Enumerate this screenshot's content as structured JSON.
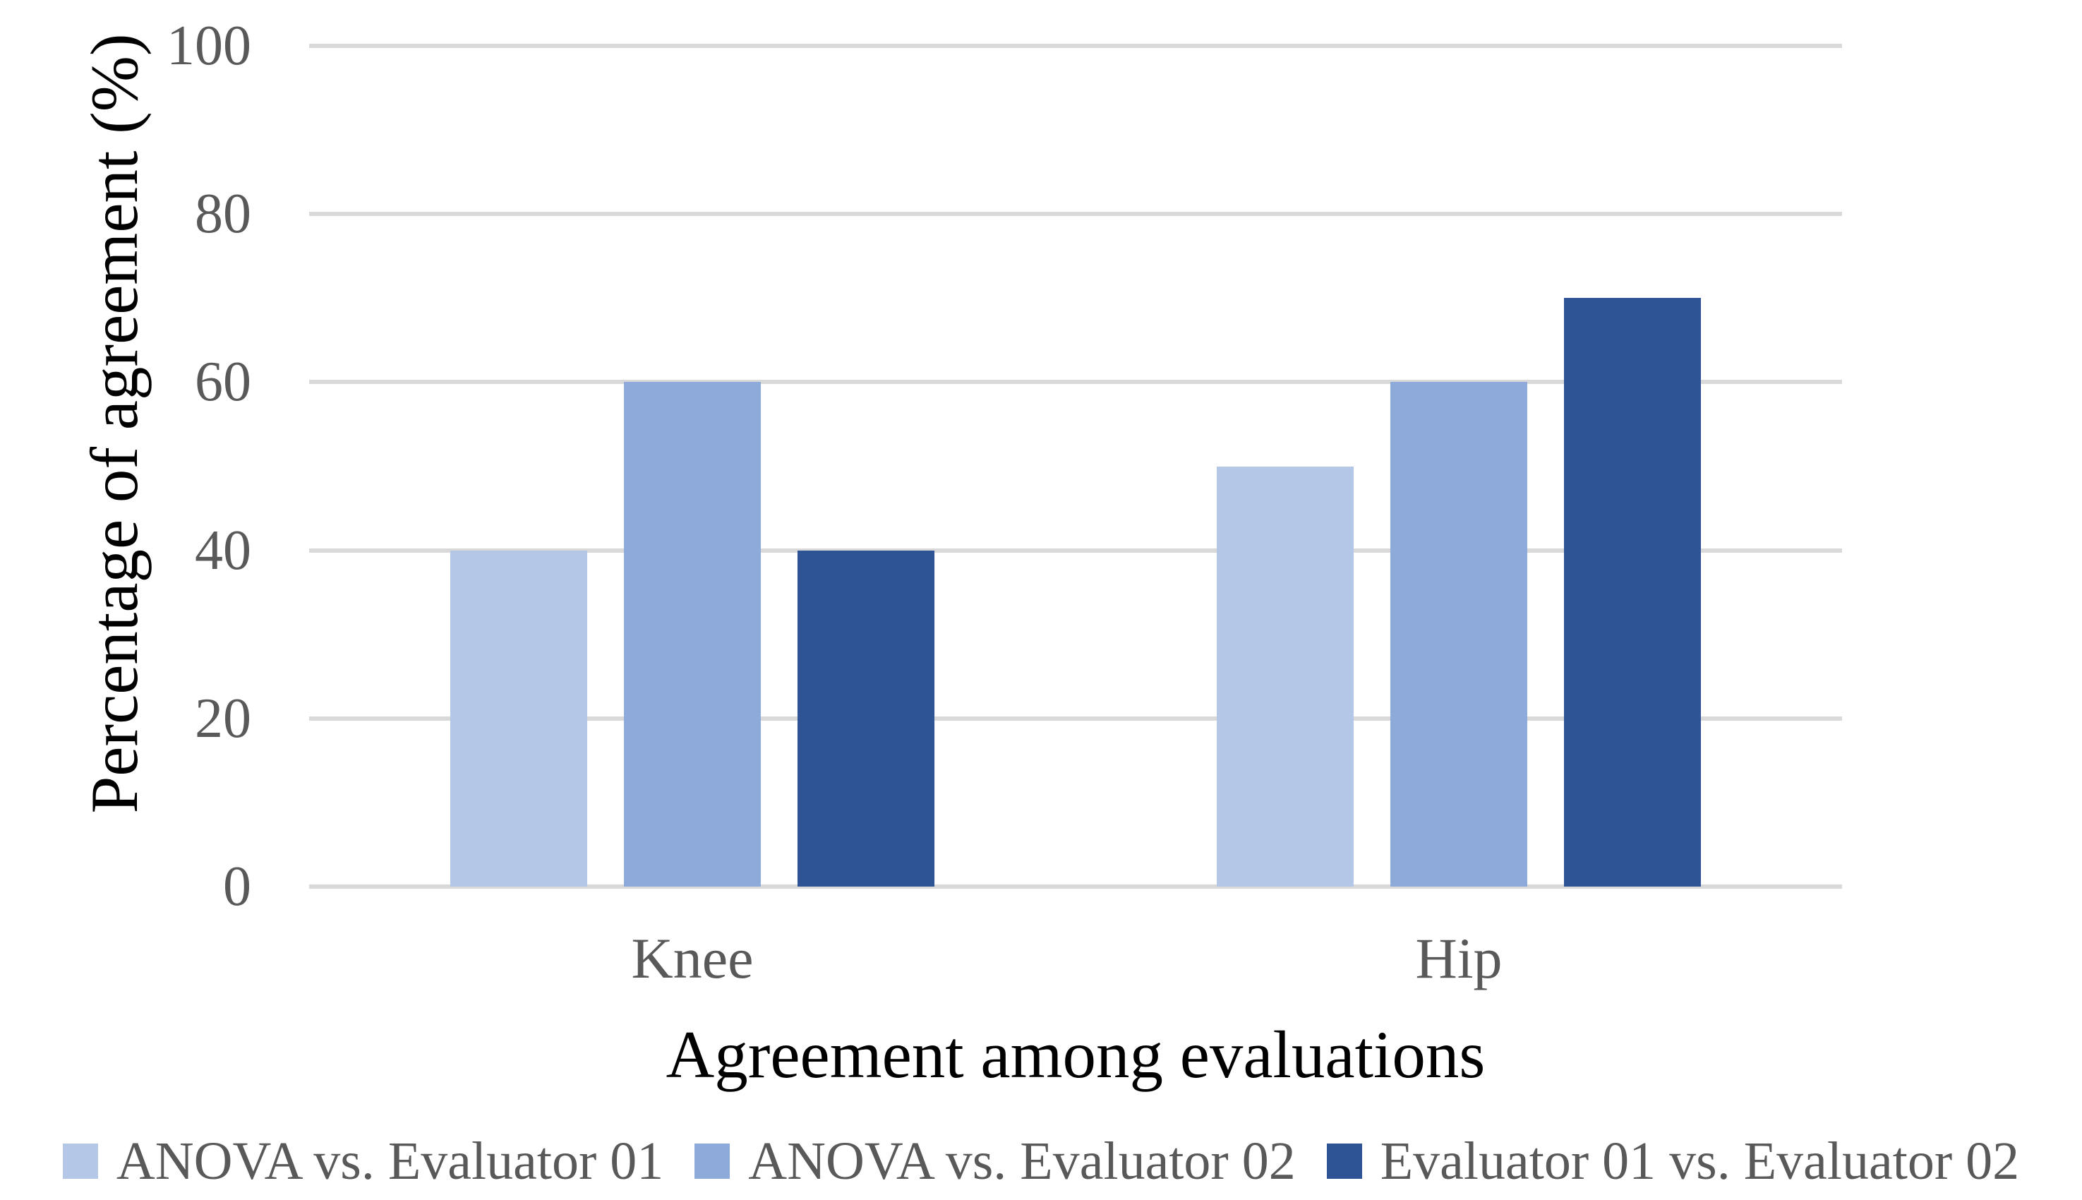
{
  "chart_data": {
    "type": "bar",
    "title": "",
    "categories": [
      "Knee",
      "Hip"
    ],
    "series": [
      {
        "name": "ANOVA vs. Evaluator 01",
        "color": "#B4C7E7",
        "values": [
          40,
          50
        ]
      },
      {
        "name": "ANOVA vs. Evaluator 02",
        "color": "#8EAADB",
        "values": [
          60,
          60
        ]
      },
      {
        "name": "Evaluator 01 vs. Evaluator 02",
        "color": "#2F5496",
        "values": [
          40,
          70
        ]
      }
    ],
    "xlabel": "Agreement among evaluations",
    "ylabel": "Percentage of agreement (%)",
    "ylim": [
      0,
      100
    ],
    "yticks": [
      100,
      80,
      60,
      40,
      20,
      0
    ],
    "grid": true,
    "gridline_color": "#D9D9D9",
    "tick_label_color": "#595959",
    "axis_title_color": "#000000",
    "legend_position": "bottom"
  }
}
